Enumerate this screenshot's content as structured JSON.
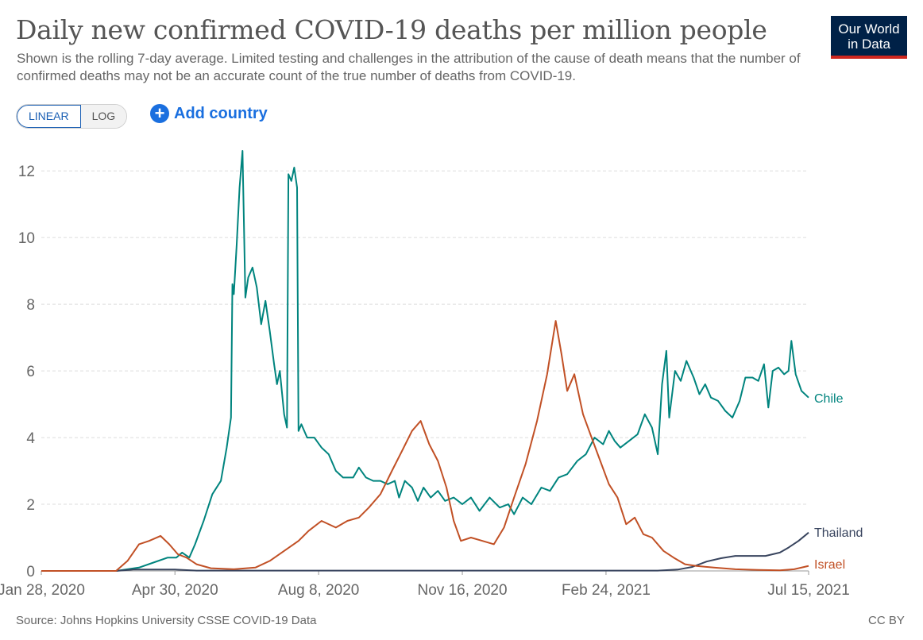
{
  "header": {
    "title": "Daily new confirmed COVID-19 deaths per million people",
    "subtitle": "Shown is the rolling 7-day average. Limited testing and challenges in the attribution of the cause of death means that the number of confirmed deaths may not be an accurate count of the true number of deaths from COVID-19.",
    "logo_line1": "Our World",
    "logo_line2": "in Data"
  },
  "controls": {
    "linear_label": "LINEAR",
    "log_label": "LOG",
    "add_country_label": "Add country",
    "add_country_icon": "plus-circle-icon"
  },
  "footer": {
    "source": "Source: Johns Hopkins University CSSE COVID-19 Data",
    "license": "CC BY"
  },
  "chart_data": {
    "type": "line",
    "x_ticks": [
      "Jan 28, 2020",
      "Apr 30, 2020",
      "Aug 8, 2020",
      "Nov 16, 2020",
      "Feb 24, 2021",
      "Jul 15, 2021"
    ],
    "y_ticks": [
      0,
      2,
      4,
      6,
      8,
      10,
      12
    ],
    "ylim": [
      0,
      12.6
    ],
    "xlim": [
      "2020-01-28",
      "2021-07-15"
    ],
    "grid": "horizontal-dashed",
    "legend": "line-end labels",
    "series": [
      {
        "name": "Chile",
        "color": "#00847e",
        "points": [
          [
            "2020-01-28",
            0
          ],
          [
            "2020-03-20",
            0
          ],
          [
            "2020-04-05",
            0.1
          ],
          [
            "2020-04-15",
            0.25
          ],
          [
            "2020-04-25",
            0.4
          ],
          [
            "2020-05-01",
            0.4
          ],
          [
            "2020-05-05",
            0.55
          ],
          [
            "2020-05-10",
            0.4
          ],
          [
            "2020-05-14",
            0.8
          ],
          [
            "2020-05-20",
            1.5
          ],
          [
            "2020-05-26",
            2.3
          ],
          [
            "2020-06-01",
            2.7
          ],
          [
            "2020-06-05",
            3.7
          ],
          [
            "2020-06-08",
            4.6
          ],
          [
            "2020-06-09",
            8.6
          ],
          [
            "2020-06-10",
            8.3
          ],
          [
            "2020-06-12",
            9.8
          ],
          [
            "2020-06-14",
            11.5
          ],
          [
            "2020-06-16",
            12.6
          ],
          [
            "2020-06-18",
            8.2
          ],
          [
            "2020-06-20",
            8.8
          ],
          [
            "2020-06-23",
            9.1
          ],
          [
            "2020-06-26",
            8.5
          ],
          [
            "2020-06-29",
            7.4
          ],
          [
            "2020-07-02",
            8.1
          ],
          [
            "2020-07-05",
            7.2
          ],
          [
            "2020-07-08",
            6.2
          ],
          [
            "2020-07-10",
            5.6
          ],
          [
            "2020-07-12",
            6.0
          ],
          [
            "2020-07-15",
            4.7
          ],
          [
            "2020-07-17",
            4.3
          ],
          [
            "2020-07-18",
            11.9
          ],
          [
            "2020-07-20",
            11.7
          ],
          [
            "2020-07-22",
            12.1
          ],
          [
            "2020-07-24",
            11.5
          ],
          [
            "2020-07-25",
            4.2
          ],
          [
            "2020-07-27",
            4.4
          ],
          [
            "2020-07-31",
            4.0
          ],
          [
            "2020-08-05",
            4.0
          ],
          [
            "2020-08-10",
            3.7
          ],
          [
            "2020-08-15",
            3.5
          ],
          [
            "2020-08-20",
            3.0
          ],
          [
            "2020-08-25",
            2.8
          ],
          [
            "2020-09-01",
            2.8
          ],
          [
            "2020-09-05",
            3.1
          ],
          [
            "2020-09-10",
            2.8
          ],
          [
            "2020-09-15",
            2.7
          ],
          [
            "2020-09-20",
            2.7
          ],
          [
            "2020-09-25",
            2.6
          ],
          [
            "2020-09-30",
            2.7
          ],
          [
            "2020-10-03",
            2.2
          ],
          [
            "2020-10-07",
            2.7
          ],
          [
            "2020-10-12",
            2.5
          ],
          [
            "2020-10-16",
            2.1
          ],
          [
            "2020-10-20",
            2.5
          ],
          [
            "2020-10-25",
            2.2
          ],
          [
            "2020-10-30",
            2.4
          ],
          [
            "2020-11-04",
            2.1
          ],
          [
            "2020-11-10",
            2.2
          ],
          [
            "2020-11-16",
            2.0
          ],
          [
            "2020-11-22",
            2.2
          ],
          [
            "2020-11-28",
            1.8
          ],
          [
            "2020-12-05",
            2.2
          ],
          [
            "2020-12-12",
            1.9
          ],
          [
            "2020-12-18",
            2.0
          ],
          [
            "2020-12-22",
            1.7
          ],
          [
            "2020-12-28",
            2.2
          ],
          [
            "2021-01-03",
            2.0
          ],
          [
            "2021-01-10",
            2.5
          ],
          [
            "2021-01-16",
            2.4
          ],
          [
            "2021-01-22",
            2.8
          ],
          [
            "2021-01-28",
            2.9
          ],
          [
            "2021-02-04",
            3.3
          ],
          [
            "2021-02-10",
            3.5
          ],
          [
            "2021-02-16",
            4.0
          ],
          [
            "2021-02-22",
            3.8
          ],
          [
            "2021-02-26",
            4.2
          ],
          [
            "2021-03-02",
            3.9
          ],
          [
            "2021-03-06",
            3.7
          ],
          [
            "2021-03-12",
            3.9
          ],
          [
            "2021-03-18",
            4.1
          ],
          [
            "2021-03-23",
            4.7
          ],
          [
            "2021-03-28",
            4.3
          ],
          [
            "2021-04-01",
            3.5
          ],
          [
            "2021-04-04",
            5.6
          ],
          [
            "2021-04-07",
            6.6
          ],
          [
            "2021-04-09",
            4.6
          ],
          [
            "2021-04-13",
            6.0
          ],
          [
            "2021-04-17",
            5.7
          ],
          [
            "2021-04-21",
            6.3
          ],
          [
            "2021-04-26",
            5.8
          ],
          [
            "2021-04-30",
            5.3
          ],
          [
            "2021-05-04",
            5.6
          ],
          [
            "2021-05-08",
            5.2
          ],
          [
            "2021-05-13",
            5.1
          ],
          [
            "2021-05-18",
            4.8
          ],
          [
            "2021-05-23",
            4.6
          ],
          [
            "2021-05-28",
            5.1
          ],
          [
            "2021-06-01",
            5.8
          ],
          [
            "2021-06-06",
            5.8
          ],
          [
            "2021-06-10",
            5.7
          ],
          [
            "2021-06-14",
            6.2
          ],
          [
            "2021-06-17",
            4.9
          ],
          [
            "2021-06-20",
            6.0
          ],
          [
            "2021-06-24",
            6.1
          ],
          [
            "2021-06-28",
            5.9
          ],
          [
            "2021-07-01",
            6.0
          ],
          [
            "2021-07-03",
            6.9
          ],
          [
            "2021-07-06",
            5.9
          ],
          [
            "2021-07-10",
            5.4
          ],
          [
            "2021-07-15",
            5.2
          ]
        ]
      },
      {
        "name": "Thailand",
        "color": "#38445e",
        "points": [
          [
            "2020-01-28",
            0
          ],
          [
            "2020-03-20",
            0
          ],
          [
            "2020-04-01",
            0.04
          ],
          [
            "2020-04-30",
            0.04
          ],
          [
            "2020-05-15",
            0.01
          ],
          [
            "2021-04-01",
            0.01
          ],
          [
            "2021-04-15",
            0.04
          ],
          [
            "2021-04-25",
            0.12
          ],
          [
            "2021-05-05",
            0.28
          ],
          [
            "2021-05-15",
            0.38
          ],
          [
            "2021-05-25",
            0.45
          ],
          [
            "2021-06-05",
            0.45
          ],
          [
            "2021-06-15",
            0.45
          ],
          [
            "2021-06-25",
            0.55
          ],
          [
            "2021-07-01",
            0.7
          ],
          [
            "2021-07-08",
            0.9
          ],
          [
            "2021-07-15",
            1.15
          ]
        ]
      },
      {
        "name": "Israel",
        "color": "#c15025",
        "points": [
          [
            "2020-01-28",
            0
          ],
          [
            "2020-03-20",
            0
          ],
          [
            "2020-03-28",
            0.3
          ],
          [
            "2020-04-05",
            0.8
          ],
          [
            "2020-04-12",
            0.9
          ],
          [
            "2020-04-20",
            1.05
          ],
          [
            "2020-04-26",
            0.8
          ],
          [
            "2020-05-02",
            0.5
          ],
          [
            "2020-05-08",
            0.4
          ],
          [
            "2020-05-15",
            0.2
          ],
          [
            "2020-05-25",
            0.08
          ],
          [
            "2020-06-10",
            0.05
          ],
          [
            "2020-06-25",
            0.1
          ],
          [
            "2020-07-05",
            0.3
          ],
          [
            "2020-07-15",
            0.6
          ],
          [
            "2020-07-25",
            0.9
          ],
          [
            "2020-08-01",
            1.2
          ],
          [
            "2020-08-10",
            1.5
          ],
          [
            "2020-08-20",
            1.3
          ],
          [
            "2020-08-28",
            1.5
          ],
          [
            "2020-09-05",
            1.6
          ],
          [
            "2020-09-12",
            1.9
          ],
          [
            "2020-09-20",
            2.3
          ],
          [
            "2020-09-28",
            3.0
          ],
          [
            "2020-10-05",
            3.6
          ],
          [
            "2020-10-12",
            4.2
          ],
          [
            "2020-10-18",
            4.5
          ],
          [
            "2020-10-24",
            3.8
          ],
          [
            "2020-10-30",
            3.3
          ],
          [
            "2020-11-05",
            2.5
          ],
          [
            "2020-11-10",
            1.5
          ],
          [
            "2020-11-15",
            0.9
          ],
          [
            "2020-11-22",
            1.0
          ],
          [
            "2020-11-30",
            0.9
          ],
          [
            "2020-12-08",
            0.8
          ],
          [
            "2020-12-15",
            1.3
          ],
          [
            "2020-12-22",
            2.2
          ],
          [
            "2020-12-30",
            3.2
          ],
          [
            "2021-01-07",
            4.5
          ],
          [
            "2021-01-14",
            5.9
          ],
          [
            "2021-01-20",
            7.5
          ],
          [
            "2021-01-24",
            6.5
          ],
          [
            "2021-01-28",
            5.4
          ],
          [
            "2021-02-02",
            5.9
          ],
          [
            "2021-02-08",
            4.7
          ],
          [
            "2021-02-14",
            4.0
          ],
          [
            "2021-02-20",
            3.3
          ],
          [
            "2021-02-26",
            2.6
          ],
          [
            "2021-03-04",
            2.2
          ],
          [
            "2021-03-10",
            1.4
          ],
          [
            "2021-03-16",
            1.6
          ],
          [
            "2021-03-22",
            1.1
          ],
          [
            "2021-03-28",
            1.0
          ],
          [
            "2021-04-05",
            0.6
          ],
          [
            "2021-04-12",
            0.4
          ],
          [
            "2021-04-20",
            0.2
          ],
          [
            "2021-04-28",
            0.15
          ],
          [
            "2021-05-10",
            0.1
          ],
          [
            "2021-05-25",
            0.05
          ],
          [
            "2021-06-10",
            0.03
          ],
          [
            "2021-06-25",
            0.02
          ],
          [
            "2021-07-05",
            0.05
          ],
          [
            "2021-07-15",
            0.15
          ]
        ]
      }
    ]
  }
}
